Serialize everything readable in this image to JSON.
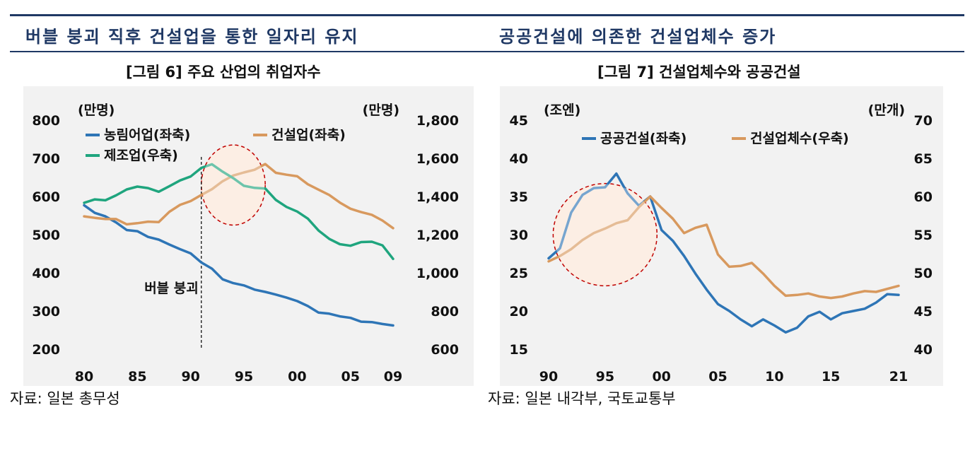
{
  "headings": {
    "left": "버블 붕괴 직후 건설업을 통한 일자리 유지",
    "right": "공공건설에 의존한 건설업체수 증가"
  },
  "sources": {
    "left": "자료: 일본 총무성",
    "right": "자료: 일본 내각부, 국토교통부"
  },
  "colors": {
    "heading": "#1f3864",
    "blue": "#2e75b6",
    "orange": "#d8995e",
    "green": "#1fa57e",
    "highlight_fill": "#fbe5d6",
    "highlight_stroke": "#c00000",
    "panel": "#f2f2f2"
  },
  "chart_data": [
    {
      "type": "line",
      "title": "[그림 6] 주요 산업의 취업자수",
      "left_unit": "(만명)",
      "right_unit": "(만명)",
      "x_ticks": [
        {
          "value": 1980,
          "label": "80"
        },
        {
          "value": 1985,
          "label": "85"
        },
        {
          "value": 1990,
          "label": "90"
        },
        {
          "value": 1995,
          "label": "95"
        },
        {
          "value": 2000,
          "label": "00"
        },
        {
          "value": 2005,
          "label": "05"
        },
        {
          "value": 2009,
          "label": "09"
        }
      ],
      "x_range": [
        1980,
        2009
      ],
      "ylim_left": [
        200,
        800
      ],
      "ylim_right": [
        600,
        1800
      ],
      "yticks_left": [
        "200",
        "300",
        "400",
        "500",
        "600",
        "700",
        "800"
      ],
      "yticks_right": [
        "600",
        "800",
        "1,000",
        "1,200",
        "1,400",
        "1,600",
        "1,800"
      ],
      "annotation": {
        "label": "버블 붕괴",
        "x": 1991
      },
      "highlight": {
        "center": [
          1994,
          1460
        ],
        "axis": "right",
        "radius_x_years": 3,
        "radius_y_values": 210
      },
      "legend": [
        "농림어업(좌축)",
        "건설업(좌축)",
        "제조업(우축)"
      ],
      "series": [
        {
          "name": "농림어업(좌축)",
          "axis": "left",
          "color": "#2e75b6",
          "x": [
            1980,
            1981,
            1982,
            1983,
            1984,
            1985,
            1986,
            1987,
            1988,
            1989,
            1990,
            1991,
            1992,
            1993,
            1994,
            1995,
            1996,
            1997,
            1998,
            1999,
            2000,
            2001,
            2002,
            2003,
            2004,
            2005,
            2006,
            2007,
            2008,
            2009
          ],
          "values": [
            577,
            557,
            548,
            532,
            512,
            509,
            494,
            487,
            474,
            462,
            451,
            427,
            411,
            383,
            373,
            367,
            356,
            350,
            343,
            335,
            326,
            313,
            296,
            293,
            286,
            282,
            272,
            271,
            266,
            262
          ]
        },
        {
          "name": "건설업(좌축)",
          "axis": "left",
          "color": "#d8995e",
          "x": [
            1980,
            1981,
            1982,
            1983,
            1984,
            1985,
            1986,
            1987,
            1988,
            1989,
            1990,
            1991,
            1992,
            1993,
            1994,
            1995,
            1996,
            1997,
            1998,
            1999,
            2000,
            2001,
            2002,
            2003,
            2004,
            2005,
            2006,
            2007,
            2008,
            2009
          ],
          "values": [
            548,
            544,
            541,
            541,
            527,
            530,
            534,
            533,
            560,
            578,
            588,
            604,
            619,
            640,
            655,
            663,
            670,
            685,
            662,
            657,
            653,
            632,
            618,
            604,
            584,
            568,
            559,
            552,
            537,
            517
          ]
        },
        {
          "name": "제조업(우축)",
          "axis": "right",
          "color": "#1fa57e",
          "x": [
            1980,
            1981,
            1982,
            1983,
            1984,
            1985,
            1986,
            1987,
            1988,
            1989,
            1990,
            1991,
            1992,
            1993,
            1994,
            1995,
            1996,
            1997,
            1998,
            1999,
            2000,
            2001,
            2002,
            2003,
            2004,
            2005,
            2006,
            2007,
            2008,
            2009
          ],
          "values": [
            1367,
            1385,
            1380,
            1406,
            1437,
            1452,
            1444,
            1425,
            1454,
            1484,
            1505,
            1550,
            1569,
            1530,
            1496,
            1456,
            1445,
            1442,
            1382,
            1345,
            1321,
            1284,
            1222,
            1178,
            1150,
            1142,
            1161,
            1163,
            1144,
            1073
          ]
        }
      ]
    },
    {
      "type": "line",
      "title": "[그림 7] 건설업체수와 공공건설",
      "left_unit": "(조엔)",
      "right_unit": "(만개)",
      "x_ticks": [
        {
          "value": 1990,
          "label": "90"
        },
        {
          "value": 1995,
          "label": "95"
        },
        {
          "value": 2000,
          "label": "00"
        },
        {
          "value": 2005,
          "label": "05"
        },
        {
          "value": 2010,
          "label": "10"
        },
        {
          "value": 2015,
          "label": "15"
        },
        {
          "value": 2021,
          "label": "21"
        }
      ],
      "x_range": [
        1990,
        2021
      ],
      "ylim_left": [
        15,
        45
      ],
      "ylim_right": [
        40,
        70
      ],
      "yticks_left": [
        "15",
        "20",
        "25",
        "30",
        "35",
        "40",
        "45"
      ],
      "yticks_right": [
        "40",
        "45",
        "50",
        "55",
        "60",
        "65",
        "70"
      ],
      "highlight": {
        "center": [
          1995,
          30
        ],
        "axis": "left",
        "radius_x_years": 4.6,
        "radius_y_values": 6.7
      },
      "legend": [
        "공공건설(좌축)",
        "건설업체수(우축)"
      ],
      "series": [
        {
          "name": "공공건설(좌축)",
          "axis": "left",
          "color": "#2e75b6",
          "x": [
            1990,
            1991,
            1992,
            1993,
            1994,
            1995,
            1996,
            1997,
            1998,
            1999,
            2000,
            2001,
            2002,
            2003,
            2004,
            2005,
            2006,
            2007,
            2008,
            2009,
            2010,
            2011,
            2012,
            2013,
            2014,
            2015,
            2016,
            2017,
            2018,
            2019,
            2020,
            2021
          ],
          "values": [
            26.9,
            28.2,
            32.9,
            35.2,
            36.1,
            36.2,
            38.0,
            35.4,
            33.8,
            35.0,
            30.6,
            29.2,
            27.2,
            24.9,
            22.8,
            20.9,
            20.0,
            18.9,
            18.0,
            18.9,
            18.1,
            17.2,
            17.8,
            19.3,
            19.9,
            18.9,
            19.7,
            20.0,
            20.3,
            21.1,
            22.2,
            22.1
          ]
        },
        {
          "name": "건설업체수(우축)",
          "axis": "right",
          "color": "#d8995e",
          "x": [
            1990,
            1991,
            1992,
            1993,
            1994,
            1995,
            1996,
            1997,
            1998,
            1999,
            2000,
            2001,
            2002,
            2003,
            2004,
            2005,
            2006,
            2007,
            2008,
            2009,
            2010,
            2011,
            2012,
            2013,
            2014,
            2015,
            2016,
            2017,
            2018,
            2019,
            2020,
            2021
          ],
          "values": [
            51.5,
            52.2,
            53.1,
            54.3,
            55.2,
            55.8,
            56.5,
            56.9,
            58.6,
            60.0,
            58.5,
            57.1,
            55.2,
            55.9,
            56.3,
            52.4,
            50.8,
            50.9,
            51.3,
            49.9,
            48.3,
            47.0,
            47.1,
            47.3,
            46.9,
            46.7,
            46.9,
            47.3,
            47.6,
            47.5,
            47.9,
            48.3
          ]
        }
      ]
    }
  ]
}
